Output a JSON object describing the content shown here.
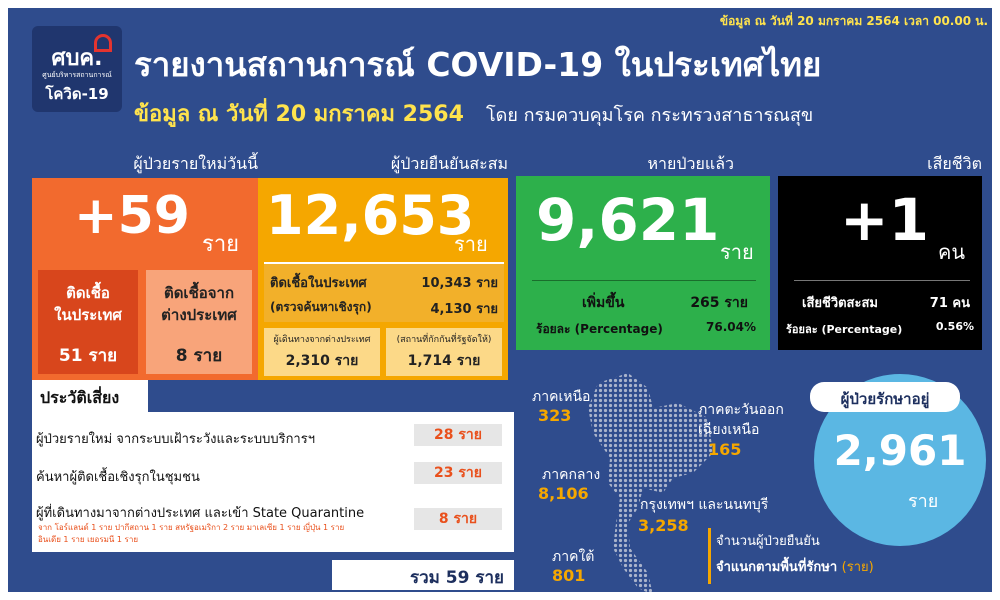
{
  "header": {
    "date_note": "ข้อมูล ณ วันที่ 20 มกราคม 2564 เวลา 00.00 น.",
    "logo": {
      "abbr": "ศบค.",
      "org": "ศูนย์บริหารสถานการณ์",
      "name": "โควิด-19"
    },
    "title": "รายงานสถานการณ์ COVID-19 ในประเทศไทย",
    "subtitle_date": "ข้อมูล ณ วันที่ 20 มกราคม 2564",
    "subtitle_source": "โดย กรมควบคุมโรค กระทรวงสาธารณสุข"
  },
  "new_cases": {
    "label": "ผู้ป่วยรายใหม่วันนี้",
    "value": "+59",
    "unit": "ราย",
    "local": {
      "label": [
        "ติดเชื้อ",
        "ในประเทศ"
      ],
      "value": "51 ราย"
    },
    "imported": {
      "label": [
        "ติดเชื้อจาก",
        "ต่างประเทศ"
      ],
      "value": "8 ราย"
    }
  },
  "cumulative": {
    "label": "ผู้ป่วยยืนยันสะสม",
    "value": "12,653",
    "unit": "ราย",
    "rows": [
      {
        "label": "ติดเชื้อในประเทศ",
        "value": "10,343 ราย"
      },
      {
        "label": "(ตรวจค้นหาเชิงรุก)",
        "value": "4,130 ราย"
      }
    ],
    "sub": [
      {
        "label": "ผู้เดินทางจากต่างประเทศ",
        "value": "2,310 ราย"
      },
      {
        "label": "(สถานที่กักกันที่รัฐจัดให้)",
        "value": "1,714 ราย"
      }
    ]
  },
  "recovered": {
    "label": "หายป่วยแล้ว",
    "value": "9,621",
    "unit": "ราย",
    "rows": [
      {
        "label": "เพิ่มขึ้น",
        "value": "265 ราย"
      },
      {
        "label": "ร้อยละ (Percentage)",
        "value": "76.04%"
      }
    ]
  },
  "deaths": {
    "label": "เสียชีวิต",
    "value": "+1",
    "unit": "คน",
    "rows": [
      {
        "label": "เสียชีวิตสะสม",
        "value": "71 คน"
      },
      {
        "label": "ร้อยละ (Percentage)",
        "value": "0.56%"
      }
    ]
  },
  "risk": {
    "title": "ประวัติเสี่ยง",
    "items": [
      {
        "label": "ผู้ป่วยรายใหม่ จากระบบเฝ้าระวังและระบบบริการฯ",
        "value": "28 ราย"
      },
      {
        "label": "ค้นหาผู้ติดเชื้อเชิงรุกในชุมชน",
        "value": "23 ราย"
      },
      {
        "label": "ผู้ที่เดินทางมาจากต่างประเทศ และเข้า State Quarantine",
        "value": "8 ราย"
      }
    ],
    "note": [
      "จาก โอร์แลนด์ 1 ราย ปากีสถาน 1 ราย สหรัฐอเมริกา 2 ราย มาเลเซีย 1 ราย ญี่ปุ่น 1 ราย",
      "อินเดีย 1 ราย เยอรมนี 1 ราย"
    ],
    "total": "รวม 59 ราย"
  },
  "regions": {
    "items": [
      {
        "name": [
          "ภาคเหนือ"
        ],
        "value": "323"
      },
      {
        "name": [
          "ภาคตะวันออก",
          "เฉียงเหนือ"
        ],
        "value": "165"
      },
      {
        "name": [
          "ภาคกลาง"
        ],
        "value": "8,106"
      },
      {
        "name": [
          "กรุงเทพฯ และนนทบุรี"
        ],
        "value": "3,258"
      },
      {
        "name": [
          "ภาคใต้"
        ],
        "value": "801"
      }
    ],
    "caption": [
      "จำนวนผู้ป่วยยืนยัน",
      "จำแนกตามพื้นที่รักษา",
      "(ราย)"
    ]
  },
  "treating": {
    "label": "ผู้ป่วยรักษาอยู่",
    "value": "2,961",
    "unit": "ราย"
  }
}
